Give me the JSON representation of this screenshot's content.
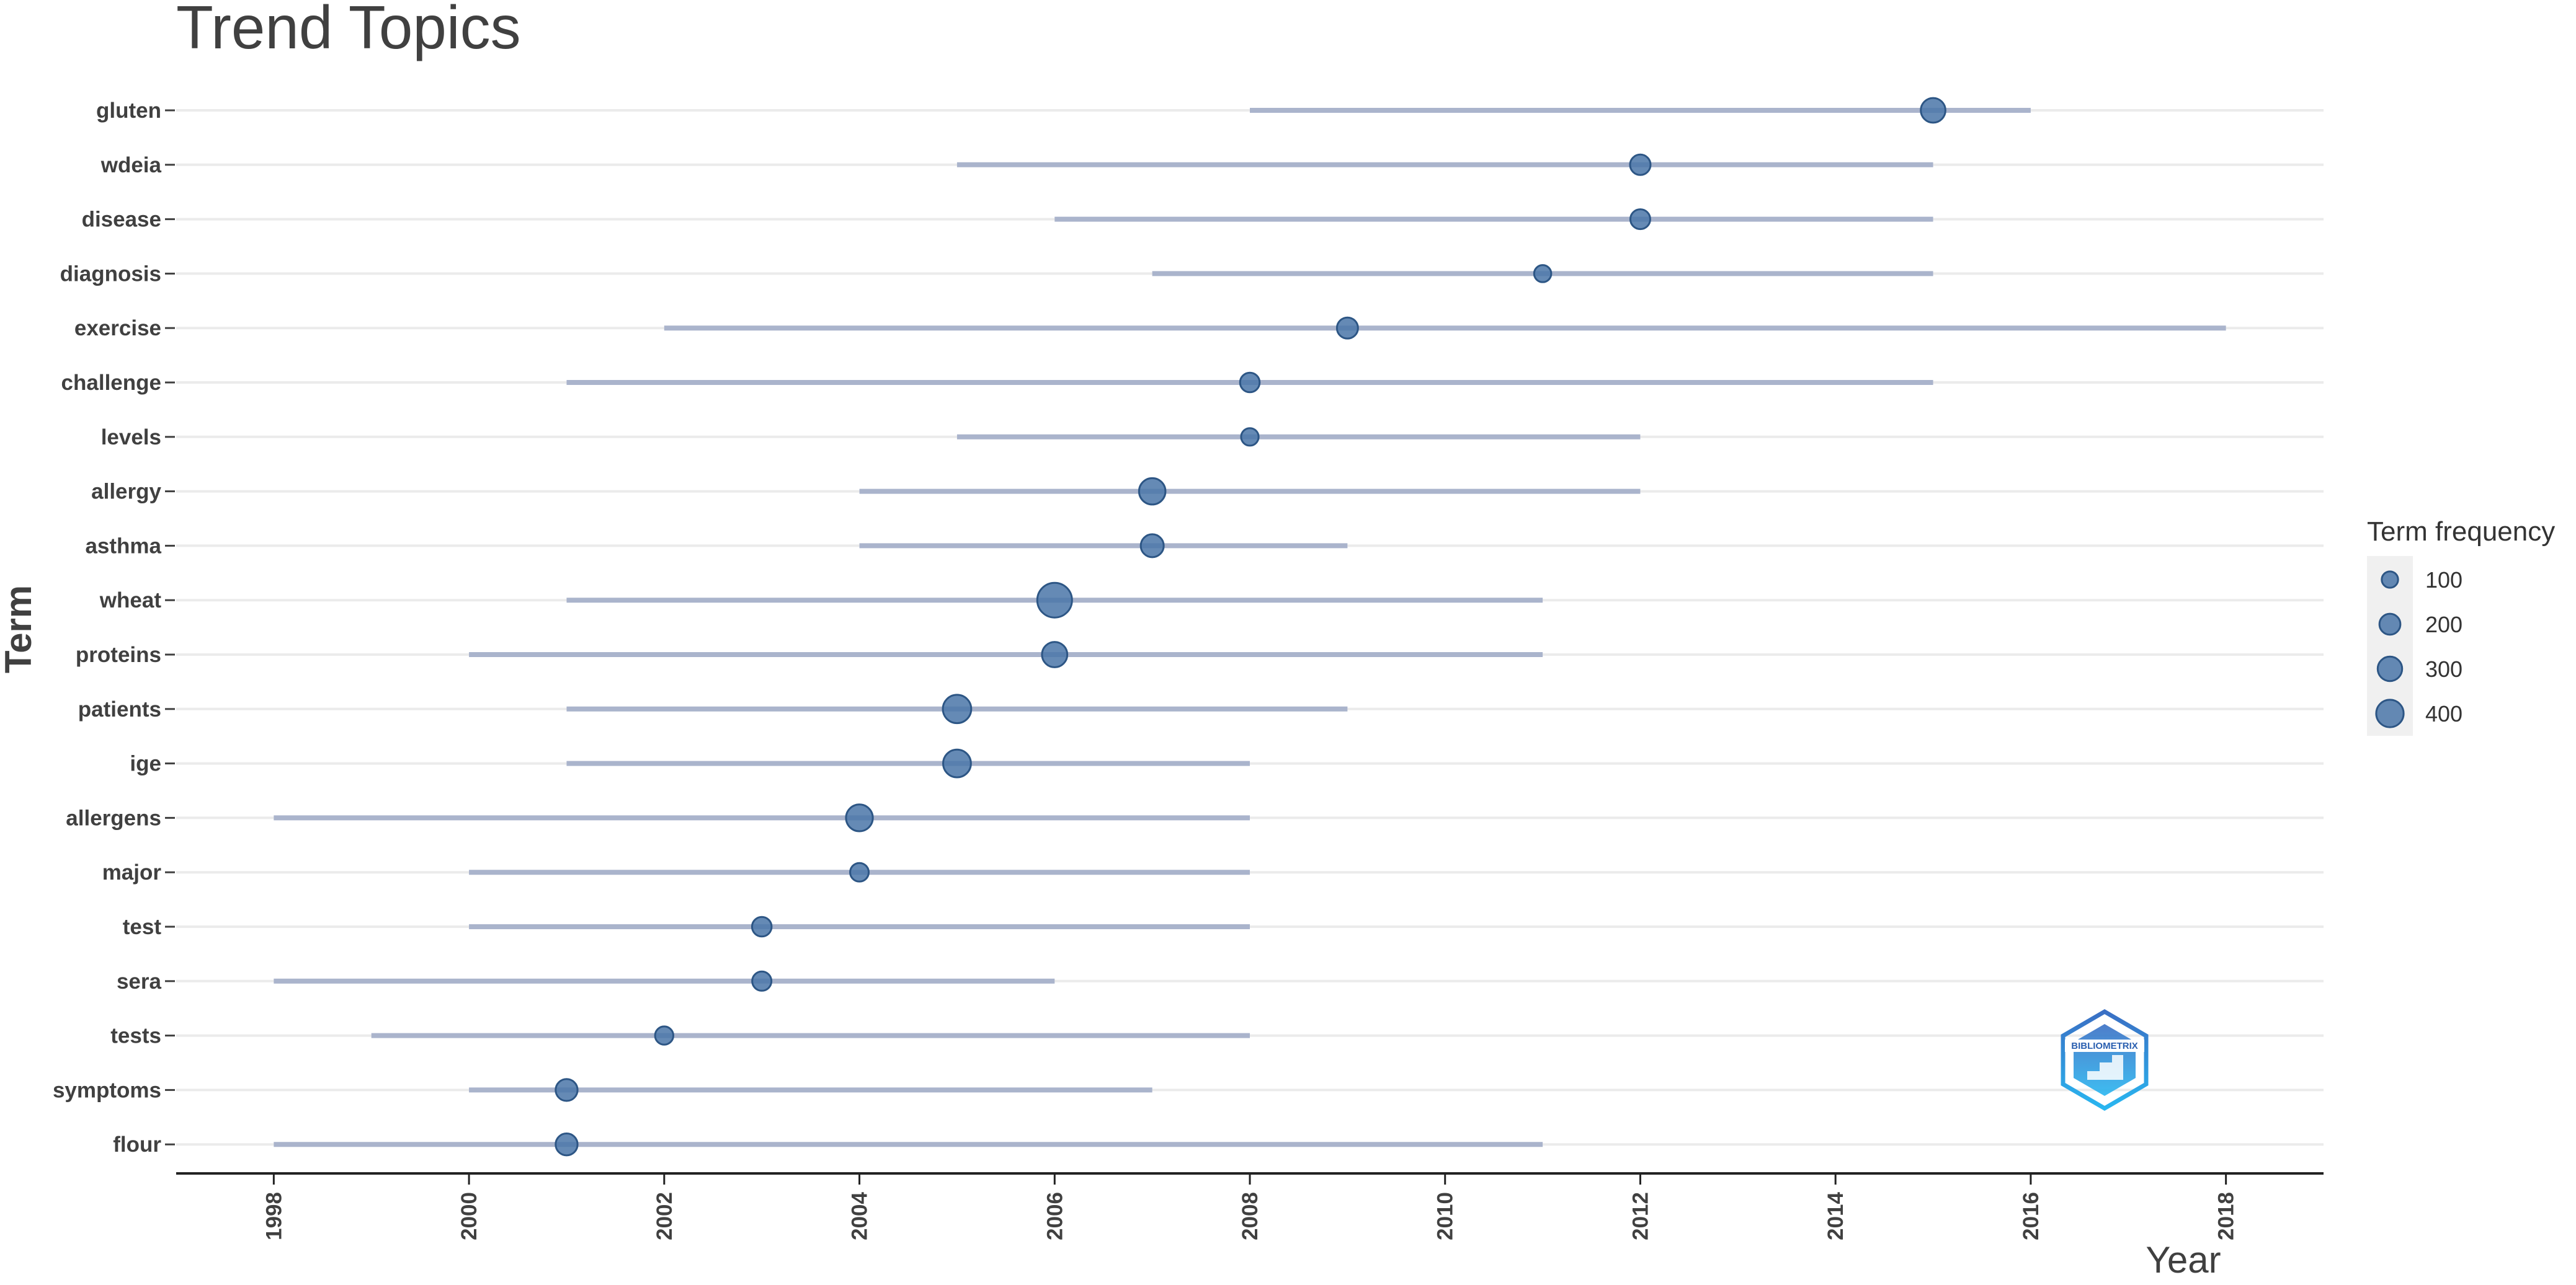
{
  "chart_data": {
    "type": "scatter",
    "title": "Trend Topics",
    "xlabel": "Year",
    "ylabel": "Term",
    "xlim": [
      1997,
      2019
    ],
    "x_ticks": [
      1998,
      2000,
      2002,
      2004,
      2006,
      2008,
      2010,
      2012,
      2014,
      2016,
      2018
    ],
    "grid": true,
    "legend_position": "right",
    "legend": {
      "title": "Term frequency",
      "entries": [
        {
          "label": "100",
          "value": 100
        },
        {
          "label": "200",
          "value": 200
        },
        {
          "label": "300",
          "value": 300
        },
        {
          "label": "400",
          "value": 400
        }
      ]
    },
    "terms": [
      {
        "term": "gluten",
        "year_q1": 2008,
        "year_median": 2015,
        "year_q3": 2016,
        "freq": 200
      },
      {
        "term": "wdeia",
        "year_q1": 2005,
        "year_median": 2012,
        "year_q3": 2015,
        "freq": 120
      },
      {
        "term": "disease",
        "year_q1": 2006,
        "year_median": 2012,
        "year_q3": 2015,
        "freq": 110
      },
      {
        "term": "diagnosis",
        "year_q1": 2007,
        "year_median": 2011,
        "year_q3": 2015,
        "freq": 70
      },
      {
        "term": "exercise",
        "year_q1": 2002,
        "year_median": 2009,
        "year_q3": 2018,
        "freq": 130
      },
      {
        "term": "challenge",
        "year_q1": 2001,
        "year_median": 2008,
        "year_q3": 2015,
        "freq": 105
      },
      {
        "term": "levels",
        "year_q1": 2005,
        "year_median": 2008,
        "year_q3": 2012,
        "freq": 75
      },
      {
        "term": "allergy",
        "year_q1": 2004,
        "year_median": 2007,
        "year_q3": 2012,
        "freq": 240
      },
      {
        "term": "asthma",
        "year_q1": 2004,
        "year_median": 2007,
        "year_q3": 2009,
        "freq": 165
      },
      {
        "term": "wheat",
        "year_q1": 2001,
        "year_median": 2006,
        "year_q3": 2011,
        "freq": 480
      },
      {
        "term": "proteins",
        "year_q1": 2000,
        "year_median": 2006,
        "year_q3": 2011,
        "freq": 215
      },
      {
        "term": "patients",
        "year_q1": 2001,
        "year_median": 2005,
        "year_q3": 2009,
        "freq": 290
      },
      {
        "term": "ige",
        "year_q1": 2001,
        "year_median": 2005,
        "year_q3": 2008,
        "freq": 275
      },
      {
        "term": "allergens",
        "year_q1": 1998,
        "year_median": 2004,
        "year_q3": 2008,
        "freq": 250
      },
      {
        "term": "major",
        "year_q1": 2000,
        "year_median": 2004,
        "year_q3": 2008,
        "freq": 90
      },
      {
        "term": "test",
        "year_q1": 2000,
        "year_median": 2003,
        "year_q3": 2008,
        "freq": 105
      },
      {
        "term": "sera",
        "year_q1": 1998,
        "year_median": 2003,
        "year_q3": 2006,
        "freq": 100
      },
      {
        "term": "tests",
        "year_q1": 1999,
        "year_median": 2002,
        "year_q3": 2008,
        "freq": 85
      },
      {
        "term": "symptoms",
        "year_q1": 2000,
        "year_median": 2001,
        "year_q3": 2007,
        "freq": 145
      },
      {
        "term": "flour",
        "year_q1": 1998,
        "year_median": 2001,
        "year_q3": 2011,
        "freq": 145
      }
    ]
  },
  "colors": {
    "point_fill": "#4a75a8",
    "point_stroke": "#2d5685",
    "range_line": "#aab4cc",
    "grid": "#ebebeb",
    "axis": "#222222",
    "text": "#404040",
    "legend_bg": "#f0f0f0",
    "logo_top": "#3a6fc4",
    "logo_bottom": "#29b6f0"
  },
  "logo": {
    "name": "bibliometrix-logo",
    "text": "BIBLIOMETRIX"
  }
}
